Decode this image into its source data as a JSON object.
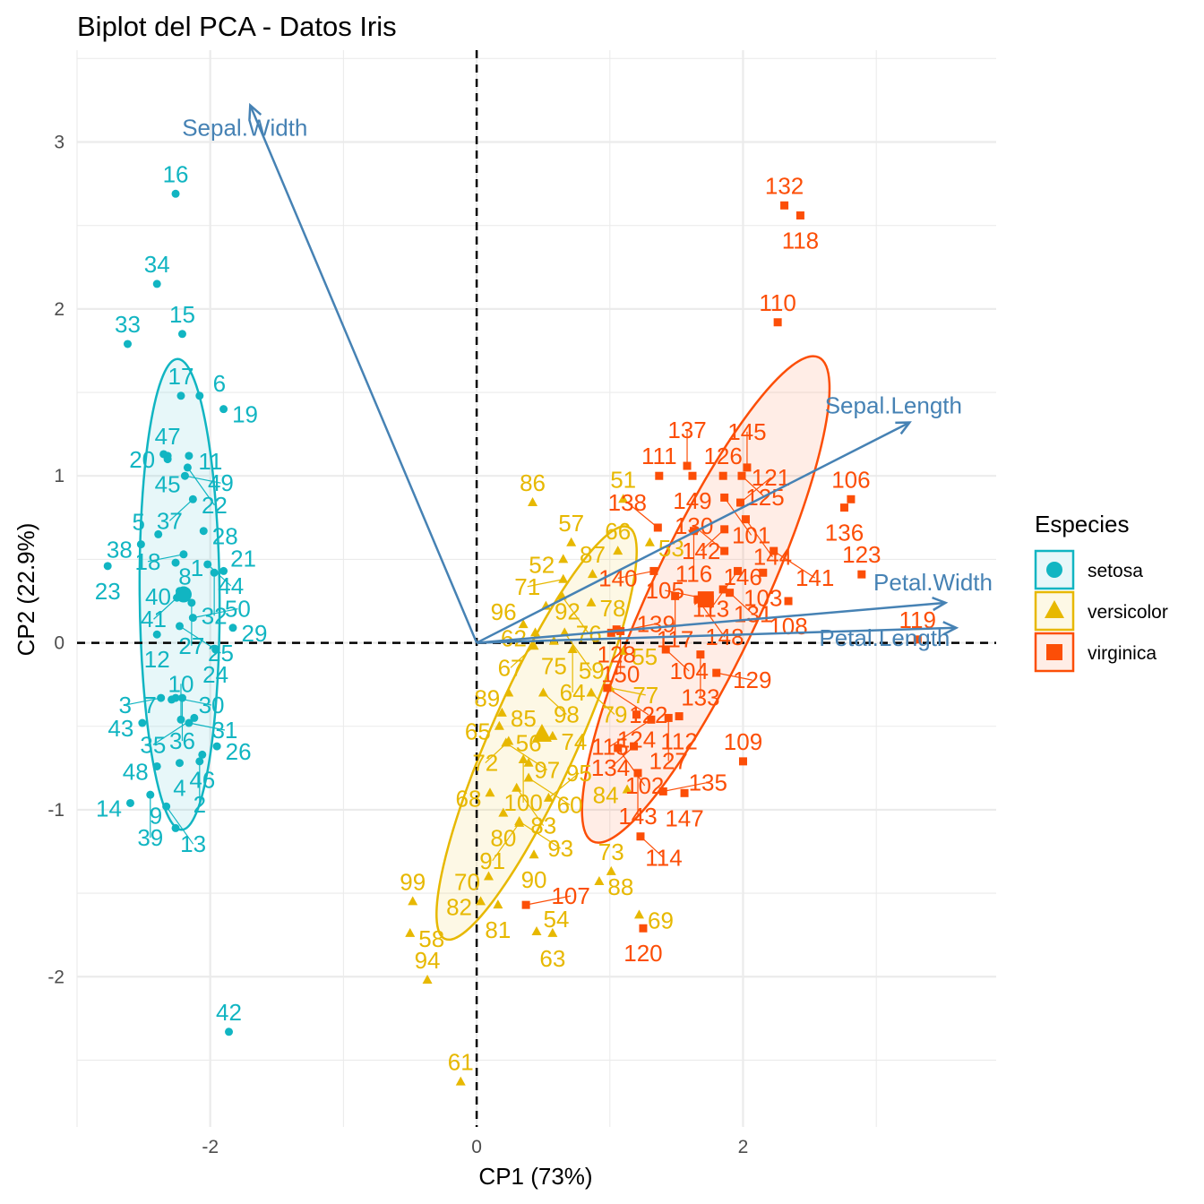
{
  "chart_data": {
    "type": "scatter",
    "title": "Biplot del PCA - Datos Iris",
    "xlabel": "CP1 (73%)",
    "ylabel": "CP2 (22.9%)",
    "xlim": [
      -3.0,
      3.9
    ],
    "ylim": [
      -2.9,
      3.55
    ],
    "x_ticks": [
      -2,
      0,
      2
    ],
    "y_ticks": [
      -2,
      -1,
      0,
      1,
      2,
      3
    ],
    "x_tick_labels": [
      "-2",
      "0",
      "2"
    ],
    "y_tick_labels": [
      "-2",
      "-1",
      "0",
      "1",
      "2",
      "3"
    ],
    "grid": true,
    "legend": {
      "title": "Especies",
      "position": "right"
    },
    "colors": {
      "setosa": "#11b5c2",
      "versicolor": "#e7b800",
      "virginica": "#fc4e07",
      "variables": "#4682b4"
    },
    "series": [
      {
        "name": "setosa",
        "marker": "circle",
        "points": [
          {
            "id": "16",
            "x": -2.26,
            "y": 2.69
          },
          {
            "id": "34",
            "x": -2.4,
            "y": 2.15
          },
          {
            "id": "33",
            "x": -2.62,
            "y": 1.79
          },
          {
            "id": "15",
            "x": -2.21,
            "y": 1.85
          },
          {
            "id": "17",
            "x": -2.22,
            "y": 1.48
          },
          {
            "id": "6",
            "x": -2.08,
            "y": 1.48
          },
          {
            "id": "19",
            "x": -1.9,
            "y": 1.4
          },
          {
            "id": "47",
            "x": -2.32,
            "y": 1.12
          },
          {
            "id": "20",
            "x": -2.35,
            "y": 1.13
          },
          {
            "id": "45",
            "x": -2.32,
            "y": 1.1
          },
          {
            "id": "11",
            "x": -2.16,
            "y": 1.12
          },
          {
            "id": "49",
            "x": -2.19,
            "y": 1.0
          },
          {
            "id": "22",
            "x": -2.17,
            "y": 1.05
          },
          {
            "id": "37",
            "x": -2.13,
            "y": 0.86
          },
          {
            "id": "28",
            "x": -2.05,
            "y": 0.67
          },
          {
            "id": "5",
            "x": -2.39,
            "y": 0.65
          },
          {
            "id": "18",
            "x": -2.2,
            "y": 0.53
          },
          {
            "id": "44",
            "x": -2.02,
            "y": 0.47
          },
          {
            "id": "21",
            "x": -1.9,
            "y": 0.43
          },
          {
            "id": "38",
            "x": -2.52,
            "y": 0.59
          },
          {
            "id": "1",
            "x": -2.26,
            "y": 0.48
          },
          {
            "id": "32",
            "x": -1.97,
            "y": 0.42
          },
          {
            "id": "23",
            "x": -2.77,
            "y": 0.46
          },
          {
            "id": "40",
            "x": -2.23,
            "y": 0.31
          },
          {
            "id": "41",
            "x": -2.25,
            "y": 0.27
          },
          {
            "id": "8",
            "x": -2.19,
            "y": 0.28
          },
          {
            "id": "27",
            "x": -2.14,
            "y": 0.24
          },
          {
            "id": "29",
            "x": -1.83,
            "y": 0.09
          },
          {
            "id": "12",
            "x": -2.4,
            "y": 0.05
          },
          {
            "id": "25",
            "x": -2.23,
            "y": 0.1
          },
          {
            "id": "50",
            "x": -2.13,
            "y": 0.15
          },
          {
            "id": "24",
            "x": -1.96,
            "y": -0.04
          },
          {
            "id": "7",
            "x": -2.29,
            "y": -0.34
          },
          {
            "id": "3",
            "x": -2.37,
            "y": -0.33
          },
          {
            "id": "30",
            "x": -2.26,
            "y": -0.33
          },
          {
            "id": "36",
            "x": -2.21,
            "y": -0.33
          },
          {
            "id": "43",
            "x": -2.51,
            "y": -0.48
          },
          {
            "id": "10",
            "x": -2.22,
            "y": -0.46
          },
          {
            "id": "31",
            "x": -2.16,
            "y": -0.48
          },
          {
            "id": "35",
            "x": -2.12,
            "y": -0.45
          },
          {
            "id": "26",
            "x": -1.95,
            "y": -0.62
          },
          {
            "id": "48",
            "x": -2.4,
            "y": -0.74
          },
          {
            "id": "4",
            "x": -2.23,
            "y": -0.72
          },
          {
            "id": "46",
            "x": -2.06,
            "y": -0.67
          },
          {
            "id": "2",
            "x": -2.08,
            "y": -0.71
          },
          {
            "id": "14",
            "x": -2.6,
            "y": -0.96
          },
          {
            "id": "39",
            "x": -2.45,
            "y": -0.91
          },
          {
            "id": "13",
            "x": -2.33,
            "y": -0.98
          },
          {
            "id": "9",
            "x": -2.26,
            "y": -1.11
          },
          {
            "id": "42",
            "x": -1.86,
            "y": -2.33
          }
        ]
      },
      {
        "name": "versicolor",
        "marker": "triangle",
        "points": [
          {
            "id": "51",
            "x": 1.1,
            "y": 0.86
          },
          {
            "id": "53",
            "x": 1.3,
            "y": 0.6
          },
          {
            "id": "86",
            "x": 0.42,
            "y": 0.84
          },
          {
            "id": "57",
            "x": 0.71,
            "y": 0.6
          },
          {
            "id": "66",
            "x": 1.06,
            "y": 0.55
          },
          {
            "id": "52",
            "x": 0.65,
            "y": 0.5
          },
          {
            "id": "87",
            "x": 0.87,
            "y": 0.41
          },
          {
            "id": "71",
            "x": 0.65,
            "y": 0.38
          },
          {
            "id": "92",
            "x": 0.52,
            "y": 0.22
          },
          {
            "id": "76",
            "x": 0.64,
            "y": 0.28
          },
          {
            "id": "78",
            "x": 0.86,
            "y": 0.24
          },
          {
            "id": "62",
            "x": 0.44,
            "y": 0.06
          },
          {
            "id": "75",
            "x": 0.58,
            "y": 0.01
          },
          {
            "id": "59",
            "x": 0.66,
            "y": 0.06
          },
          {
            "id": "96",
            "x": 0.35,
            "y": 0.11
          },
          {
            "id": "67",
            "x": 0.43,
            "y": -0.02
          },
          {
            "id": "64",
            "x": 0.72,
            "y": -0.04
          },
          {
            "id": "55",
            "x": 1.1,
            "y": -0.05
          },
          {
            "id": "89",
            "x": 0.24,
            "y": -0.3
          },
          {
            "id": "85",
            "x": 0.19,
            "y": -0.42
          },
          {
            "id": "98",
            "x": 0.5,
            "y": -0.3
          },
          {
            "id": "79",
            "x": 0.86,
            "y": -0.3
          },
          {
            "id": "77",
            "x": 1.0,
            "y": -0.27
          },
          {
            "id": "65",
            "x": 0.17,
            "y": -0.5
          },
          {
            "id": "72",
            "x": 0.24,
            "y": -0.59
          },
          {
            "id": "74",
            "x": 0.57,
            "y": -0.56
          },
          {
            "id": "97",
            "x": 0.22,
            "y": -0.6
          },
          {
            "id": "100",
            "x": 0.35,
            "y": -0.7
          },
          {
            "id": "56",
            "x": 0.39,
            "y": -0.72
          },
          {
            "id": "84",
            "x": 1.13,
            "y": -0.88
          },
          {
            "id": "68",
            "x": 0.1,
            "y": -0.9
          },
          {
            "id": "83",
            "x": 0.3,
            "y": -0.87
          },
          {
            "id": "60",
            "x": 0.39,
            "y": -0.81
          },
          {
            "id": "95",
            "x": 0.54,
            "y": -0.93
          },
          {
            "id": "80",
            "x": 0.2,
            "y": -1.02
          },
          {
            "id": "91",
            "x": 0.32,
            "y": -1.08
          },
          {
            "id": "93",
            "x": 0.32,
            "y": -1.07
          },
          {
            "id": "73",
            "x": 1.01,
            "y": -1.37
          },
          {
            "id": "99",
            "x": -0.48,
            "y": -1.55
          },
          {
            "id": "70",
            "x": 0.09,
            "y": -1.4
          },
          {
            "id": "90",
            "x": 0.43,
            "y": -1.27
          },
          {
            "id": "88",
            "x": 0.92,
            "y": -1.43
          },
          {
            "id": "69",
            "x": 1.22,
            "y": -1.63
          },
          {
            "id": "58",
            "x": -0.5,
            "y": -1.74
          },
          {
            "id": "82",
            "x": 0.03,
            "y": -1.55
          },
          {
            "id": "81",
            "x": 0.16,
            "y": -1.57
          },
          {
            "id": "54",
            "x": 0.45,
            "y": -1.73
          },
          {
            "id": "63",
            "x": 0.57,
            "y": -1.74
          },
          {
            "id": "94",
            "x": -0.37,
            "y": -2.02
          },
          {
            "id": "61",
            "x": -0.12,
            "y": -2.63
          }
        ]
      },
      {
        "name": "virginica",
        "marker": "square",
        "points": [
          {
            "id": "132",
            "x": 2.31,
            "y": 2.62
          },
          {
            "id": "118",
            "x": 2.43,
            "y": 2.56
          },
          {
            "id": "110",
            "x": 2.26,
            "y": 1.92
          },
          {
            "id": "149",
            "x": 1.62,
            "y": 1.0
          },
          {
            "id": "125",
            "x": 1.99,
            "y": 1.0
          },
          {
            "id": "111",
            "x": 1.37,
            "y": 1.0
          },
          {
            "id": "137",
            "x": 1.58,
            "y": 1.06
          },
          {
            "id": "126",
            "x": 1.85,
            "y": 1.0
          },
          {
            "id": "145",
            "x": 2.03,
            "y": 1.05
          },
          {
            "id": "101",
            "x": 1.86,
            "y": 0.87
          },
          {
            "id": "121",
            "x": 1.98,
            "y": 0.84
          },
          {
            "id": "136",
            "x": 2.76,
            "y": 0.81
          },
          {
            "id": "106",
            "x": 2.81,
            "y": 0.86
          },
          {
            "id": "144",
            "x": 2.02,
            "y": 0.74
          },
          {
            "id": "116",
            "x": 1.63,
            "y": 0.67
          },
          {
            "id": "142",
            "x": 1.86,
            "y": 0.68
          },
          {
            "id": "138",
            "x": 1.36,
            "y": 0.69
          },
          {
            "id": "123",
            "x": 2.89,
            "y": 0.41
          },
          {
            "id": "141",
            "x": 2.23,
            "y": 0.55
          },
          {
            "id": "130",
            "x": 1.86,
            "y": 0.55
          },
          {
            "id": "140",
            "x": 1.33,
            "y": 0.43
          },
          {
            "id": "139",
            "x": 1.01,
            "y": 0.06
          },
          {
            "id": "103",
            "x": 2.15,
            "y": 0.42
          },
          {
            "id": "113",
            "x": 1.96,
            "y": 0.43
          },
          {
            "id": "148",
            "x": 1.66,
            "y": 0.26
          },
          {
            "id": "119",
            "x": 3.31,
            "y": 0.02
          },
          {
            "id": "108",
            "x": 2.34,
            "y": 0.25
          },
          {
            "id": "146",
            "x": 1.85,
            "y": 0.32
          },
          {
            "id": "105",
            "x": 1.75,
            "y": 0.26
          },
          {
            "id": "128",
            "x": 1.05,
            "y": 0.08
          },
          {
            "id": "150",
            "x": 1.08,
            "y": 0.07
          },
          {
            "id": "117",
            "x": 1.49,
            "y": 0.28
          },
          {
            "id": "131",
            "x": 1.9,
            "y": 0.3
          },
          {
            "id": "104",
            "x": 1.42,
            "y": -0.04
          },
          {
            "id": "133",
            "x": 1.68,
            "y": -0.07
          },
          {
            "id": "129",
            "x": 1.8,
            "y": -0.18
          },
          {
            "id": "112",
            "x": 1.52,
            "y": -0.44
          },
          {
            "id": "127",
            "x": 1.44,
            "y": -0.45
          },
          {
            "id": "115",
            "x": 1.31,
            "y": -0.46
          },
          {
            "id": "122",
            "x": 0.98,
            "y": -0.27
          },
          {
            "id": "109",
            "x": 2.0,
            "y": -0.71
          },
          {
            "id": "124",
            "x": 1.2,
            "y": -0.43
          },
          {
            "id": "134",
            "x": 1.18,
            "y": -0.62
          },
          {
            "id": "147",
            "x": 1.56,
            "y": -0.9
          },
          {
            "id": "102",
            "x": 1.06,
            "y": -0.63
          },
          {
            "id": "143",
            "x": 1.21,
            "y": -0.78
          },
          {
            "id": "135",
            "x": 1.4,
            "y": -0.89
          },
          {
            "id": "114",
            "x": 1.23,
            "y": -1.16
          },
          {
            "id": "107",
            "x": 0.37,
            "y": -1.57
          },
          {
            "id": "120",
            "x": 1.25,
            "y": -1.71
          }
        ]
      }
    ],
    "variables": [
      {
        "name": "Sepal.Width",
        "x": -1.7,
        "y": 3.22
      },
      {
        "name": "Sepal.Length",
        "x": 3.25,
        "y": 1.32
      },
      {
        "name": "Petal.Width",
        "x": 3.52,
        "y": 0.24
      },
      {
        "name": "Petal.Length",
        "x": 3.6,
        "y": 0.09
      }
    ],
    "centroids": [
      {
        "species": "setosa",
        "x": -2.2,
        "y": 0.29
      },
      {
        "species": "versicolor",
        "x": 0.49,
        "y": -0.55
      },
      {
        "species": "virginica",
        "x": 1.72,
        "y": 0.26
      }
    ],
    "ellipses": [
      {
        "species": "setosa",
        "cx": -2.23,
        "cy": 0.29,
        "rx": 0.3,
        "ry": 1.41,
        "angle_deg": -0.5
      },
      {
        "species": "versicolor",
        "cx": 0.45,
        "cy": -0.54,
        "rx": 0.33,
        "ry": 1.35,
        "angle_deg": 24
      },
      {
        "species": "virginica",
        "cx": 1.72,
        "cy": 0.26,
        "rx": 0.42,
        "ry": 1.6,
        "angle_deg": 25
      }
    ]
  }
}
